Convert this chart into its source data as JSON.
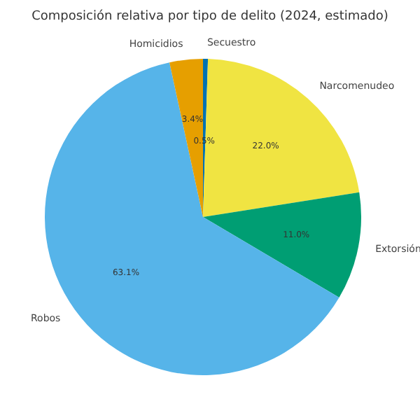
{
  "chart_data": {
    "type": "pie",
    "title": "Composición relativa por tipo de delito (2024, estimado)",
    "categories": [
      "Secuestro",
      "Narcomenudeo",
      "Extorsión",
      "Robos",
      "Homicidios"
    ],
    "values": [
      0.5,
      22.0,
      11.0,
      63.1,
      3.4
    ],
    "colors": [
      "#0072b2",
      "#f0e442",
      "#009e73",
      "#56b4e9",
      "#e69f00"
    ],
    "value_labels": [
      "0.5%",
      "22.0%",
      "11.0%",
      "63.1%",
      "3.4%"
    ]
  }
}
